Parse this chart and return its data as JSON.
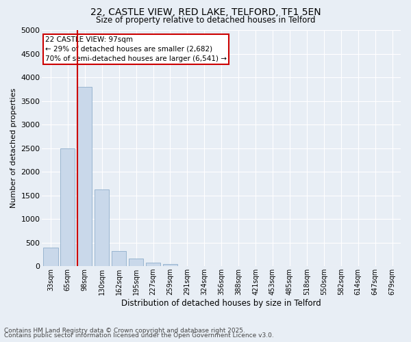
{
  "title_line1": "22, CASTLE VIEW, RED LAKE, TELFORD, TF1 5EN",
  "title_line2": "Size of property relative to detached houses in Telford",
  "xlabel": "Distribution of detached houses by size in Telford",
  "ylabel": "Number of detached properties",
  "categories": [
    "33sqm",
    "65sqm",
    "98sqm",
    "130sqm",
    "162sqm",
    "195sqm",
    "227sqm",
    "259sqm",
    "291sqm",
    "324sqm",
    "356sqm",
    "388sqm",
    "421sqm",
    "453sqm",
    "485sqm",
    "518sqm",
    "550sqm",
    "582sqm",
    "614sqm",
    "647sqm",
    "679sqm"
  ],
  "values": [
    390,
    2500,
    3800,
    1620,
    320,
    160,
    80,
    50,
    0,
    0,
    0,
    0,
    0,
    0,
    0,
    0,
    0,
    0,
    0,
    0,
    0
  ],
  "bar_color": "#c9d8ea",
  "bar_edgecolor": "#8eaecb",
  "vline_x_index": 2,
  "vline_color": "#cc0000",
  "ylim": [
    0,
    5000
  ],
  "yticks": [
    0,
    500,
    1000,
    1500,
    2000,
    2500,
    3000,
    3500,
    4000,
    4500,
    5000
  ],
  "annotation_text": "22 CASTLE VIEW: 97sqm\n← 29% of detached houses are smaller (2,682)\n70% of semi-detached houses are larger (6,541) →",
  "annotation_box_edgecolor": "#cc0000",
  "footer_line1": "Contains HM Land Registry data © Crown copyright and database right 2025.",
  "footer_line2": "Contains public sector information licensed under the Open Government Licence v3.0.",
  "bg_color": "#e8eef5",
  "plot_bg_color": "#e8eef5",
  "grid_color": "#ffffff",
  "grid_linewidth": 0.8
}
